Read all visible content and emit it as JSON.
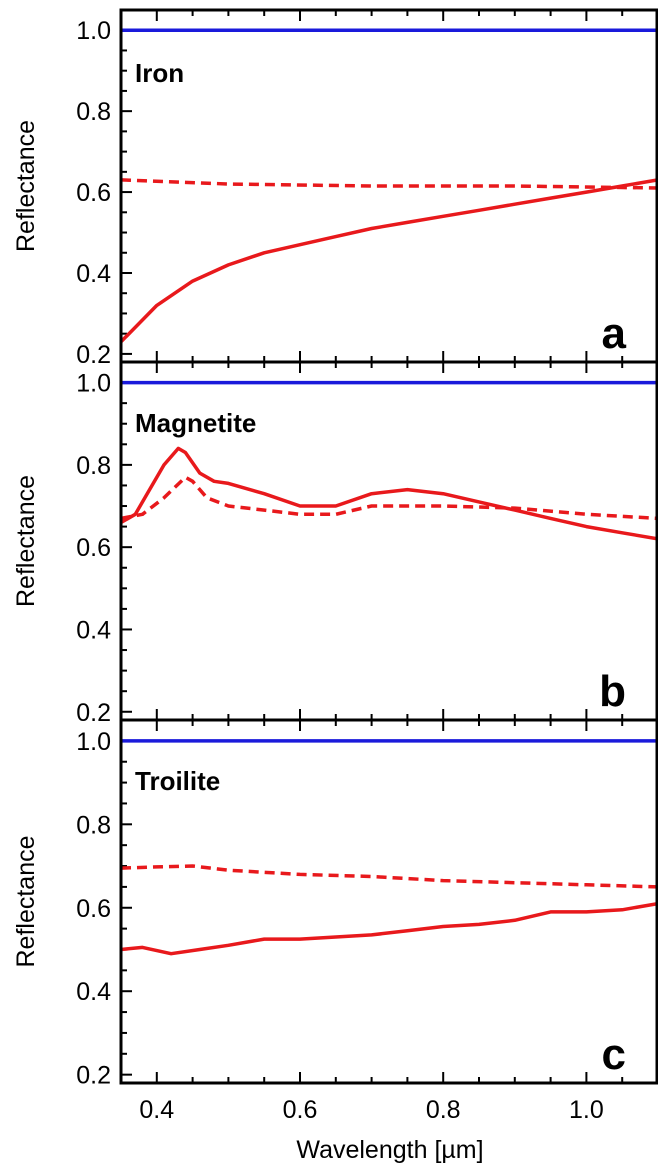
{
  "chart_data": {
    "type": "line",
    "xlabel": "Wavelength [µm]",
    "xlim": [
      0.35,
      1.1
    ],
    "x_ticks": [
      0.4,
      0.6,
      0.8,
      1.0
    ],
    "x_tick_labels": [
      "0.4",
      "0.6",
      "0.8",
      "1.0"
    ],
    "colors": {
      "reference": "#1a1adb",
      "sample": "#e8191c"
    },
    "panels": [
      {
        "title": "Iron",
        "letter": "a",
        "ylabel": "Reflectance",
        "ylim": [
          0.18,
          1.05
        ],
        "y_ticks": [
          0.2,
          0.4,
          0.6,
          0.8,
          1.0
        ],
        "y_tick_labels": [
          "0.2",
          "0.4",
          "0.6",
          "0.8",
          "1.0"
        ],
        "series": [
          {
            "style": "blue-solid",
            "x": [
              0.35,
              1.1
            ],
            "y": [
              1.0,
              1.0
            ]
          },
          {
            "style": "red-solid",
            "x": [
              0.35,
              0.4,
              0.45,
              0.5,
              0.55,
              0.6,
              0.65,
              0.7,
              0.75,
              0.8,
              0.85,
              0.9,
              0.95,
              1.0,
              1.05,
              1.1
            ],
            "y": [
              0.23,
              0.32,
              0.38,
              0.42,
              0.45,
              0.47,
              0.49,
              0.51,
              0.525,
              0.54,
              0.555,
              0.57,
              0.585,
              0.6,
              0.615,
              0.63
            ]
          },
          {
            "style": "red-dashed",
            "x": [
              0.35,
              0.5,
              0.7,
              0.9,
              1.1
            ],
            "y": [
              0.63,
              0.62,
              0.615,
              0.615,
              0.61
            ]
          }
        ]
      },
      {
        "title": "Magnetite",
        "letter": "b",
        "ylabel": "Reflectance",
        "ylim": [
          0.18,
          1.05
        ],
        "y_ticks": [
          0.2,
          0.4,
          0.6,
          0.8,
          1.0
        ],
        "y_tick_labels": [
          "0.2",
          "0.4",
          "0.6",
          "0.8",
          "1.0"
        ],
        "series": [
          {
            "style": "blue-solid",
            "x": [
              0.35,
              1.1
            ],
            "y": [
              1.0,
              1.0
            ]
          },
          {
            "style": "red-solid",
            "x": [
              0.35,
              0.37,
              0.39,
              0.41,
              0.43,
              0.44,
              0.46,
              0.48,
              0.5,
              0.55,
              0.6,
              0.65,
              0.7,
              0.75,
              0.8,
              0.85,
              0.9,
              0.95,
              1.0,
              1.05,
              1.1
            ],
            "y": [
              0.66,
              0.68,
              0.74,
              0.8,
              0.84,
              0.83,
              0.78,
              0.76,
              0.755,
              0.73,
              0.7,
              0.7,
              0.73,
              0.74,
              0.73,
              0.71,
              0.69,
              0.67,
              0.65,
              0.635,
              0.62
            ]
          },
          {
            "style": "red-dashed",
            "x": [
              0.35,
              0.38,
              0.41,
              0.44,
              0.45,
              0.47,
              0.5,
              0.55,
              0.6,
              0.65,
              0.7,
              0.8,
              0.9,
              1.0,
              1.1
            ],
            "y": [
              0.67,
              0.68,
              0.72,
              0.77,
              0.76,
              0.72,
              0.7,
              0.69,
              0.68,
              0.68,
              0.7,
              0.7,
              0.695,
              0.68,
              0.67
            ]
          }
        ]
      },
      {
        "title": "Troilite",
        "letter": "c",
        "ylabel": "Reflectance",
        "ylim": [
          0.18,
          1.05
        ],
        "y_ticks": [
          0.2,
          0.4,
          0.6,
          0.8,
          1.0
        ],
        "y_tick_labels": [
          "0.2",
          "0.4",
          "0.6",
          "0.8",
          "1.0"
        ],
        "series": [
          {
            "style": "blue-solid",
            "x": [
              0.35,
              1.1
            ],
            "y": [
              1.0,
              1.0
            ]
          },
          {
            "style": "red-solid",
            "x": [
              0.35,
              0.38,
              0.42,
              0.46,
              0.5,
              0.55,
              0.6,
              0.65,
              0.7,
              0.75,
              0.8,
              0.85,
              0.9,
              0.95,
              1.0,
              1.05,
              1.1
            ],
            "y": [
              0.5,
              0.505,
              0.49,
              0.5,
              0.51,
              0.525,
              0.525,
              0.53,
              0.535,
              0.545,
              0.555,
              0.56,
              0.57,
              0.59,
              0.59,
              0.595,
              0.61
            ]
          },
          {
            "style": "red-dashed",
            "x": [
              0.35,
              0.4,
              0.45,
              0.5,
              0.6,
              0.7,
              0.8,
              0.9,
              1.0,
              1.1
            ],
            "y": [
              0.695,
              0.698,
              0.7,
              0.69,
              0.68,
              0.675,
              0.665,
              0.66,
              0.655,
              0.65
            ]
          }
        ]
      }
    ]
  }
}
